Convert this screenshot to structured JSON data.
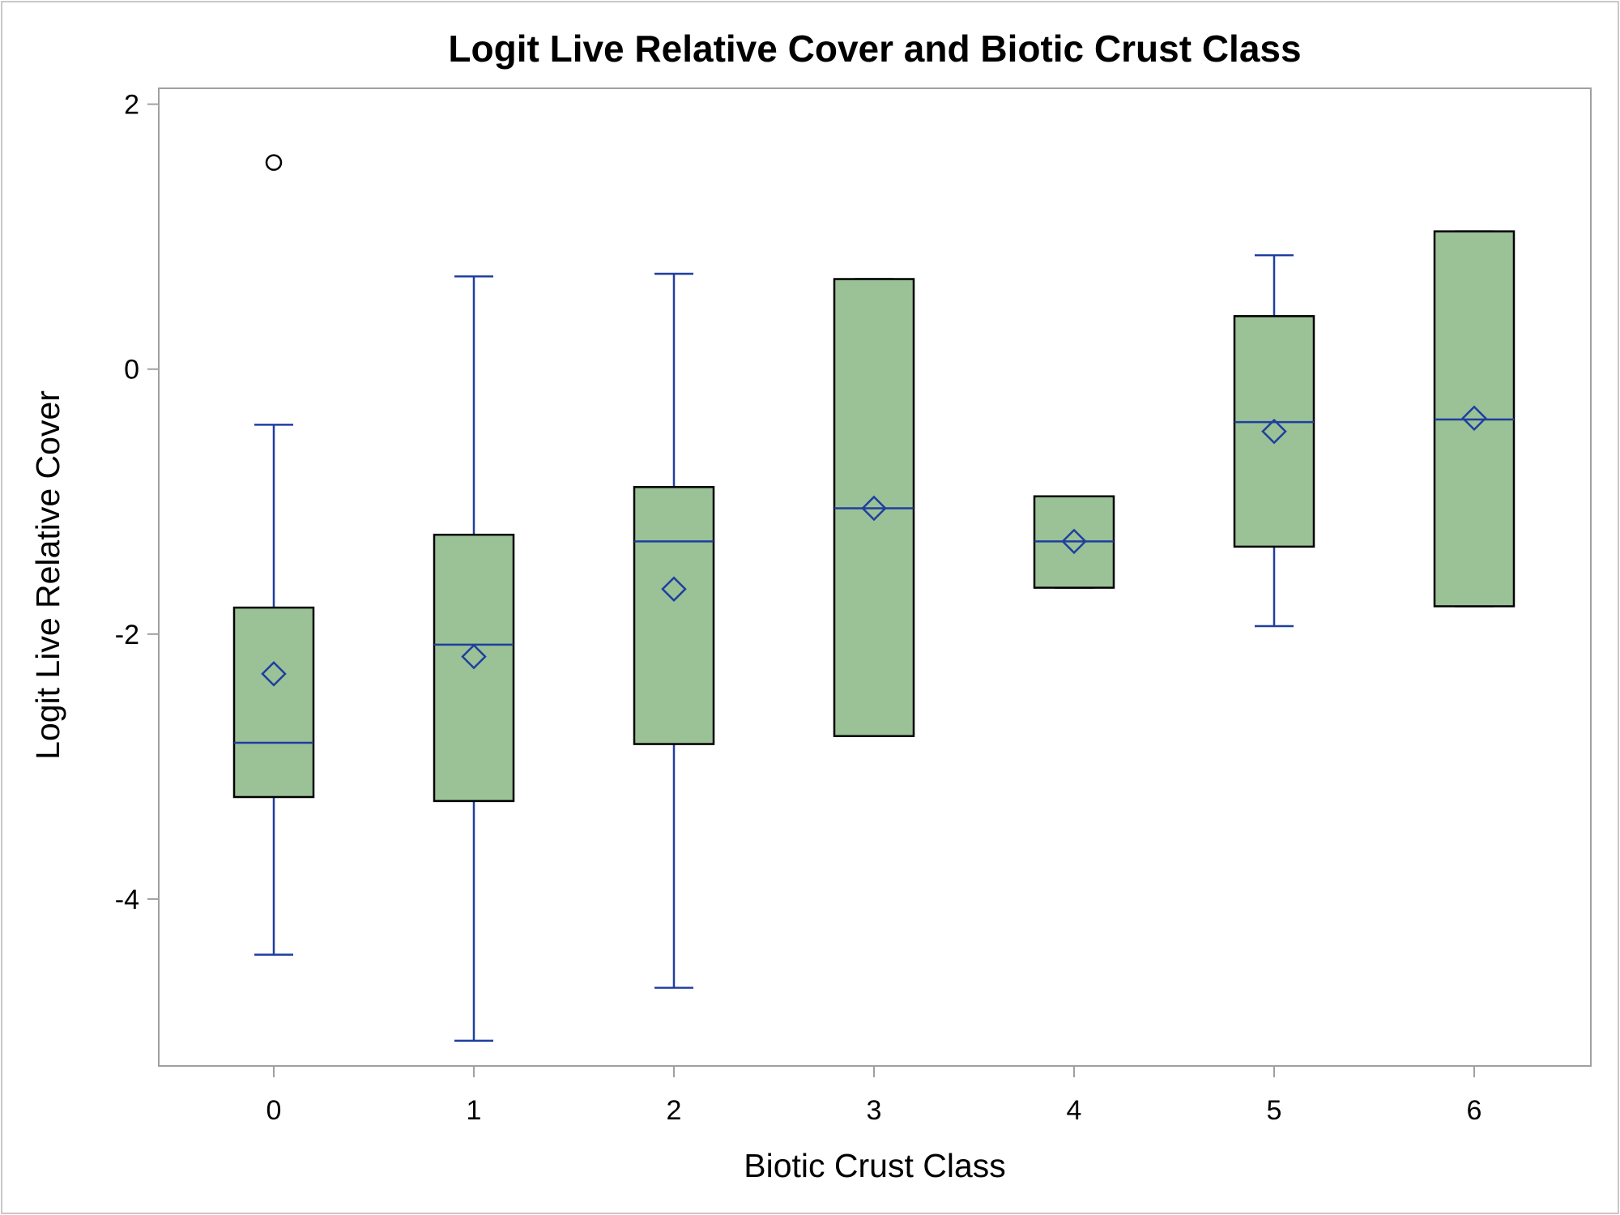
{
  "chart_data": {
    "type": "box",
    "title": "Logit Live Relative Cover and Biotic Crust Class",
    "xlabel": "Biotic Crust Class",
    "ylabel": "Logit Live Relative Cover",
    "categories": [
      "0",
      "1",
      "2",
      "3",
      "4",
      "5",
      "6"
    ],
    "yticks": [
      2,
      0,
      -2,
      -4
    ],
    "ytick_labels": [
      "2",
      "0",
      "-2",
      "-4"
    ],
    "ylim": [
      -5.26,
      2.12
    ],
    "grid": false,
    "legend": "none",
    "colors": {
      "box_fill": "#9bc196",
      "box_edge": "#000000",
      "whisker": "#1f3f9f",
      "mean_marker": "#1f3f9f",
      "outlier": "#000000",
      "axis": "#a0a0a0"
    },
    "boxes": [
      {
        "category": "0",
        "whisker_low": -4.42,
        "q1": -3.23,
        "median": -2.82,
        "q3": -1.8,
        "whisker_high": -0.42,
        "mean": -2.3,
        "outliers": [
          1.56
        ]
      },
      {
        "category": "1",
        "whisker_low": -5.07,
        "q1": -3.26,
        "median": -2.08,
        "q3": -1.25,
        "whisker_high": 0.7,
        "mean": -2.17,
        "outliers": []
      },
      {
        "category": "2",
        "whisker_low": -4.67,
        "q1": -2.83,
        "median": -1.3,
        "q3": -0.89,
        "whisker_high": 0.72,
        "mean": -1.66,
        "outliers": []
      },
      {
        "category": "3",
        "whisker_low": -2.77,
        "q1": -2.77,
        "median": -1.05,
        "q3": 0.68,
        "whisker_high": 0.68,
        "mean": -1.05,
        "outliers": []
      },
      {
        "category": "4",
        "whisker_low": -1.65,
        "q1": -1.65,
        "median": -1.3,
        "q3": -0.96,
        "whisker_high": -0.96,
        "mean": -1.3,
        "outliers": []
      },
      {
        "category": "5",
        "whisker_low": -1.94,
        "q1": -1.34,
        "median": -0.4,
        "q3": 0.4,
        "whisker_high": 0.86,
        "mean": -0.47,
        "outliers": []
      },
      {
        "category": "6",
        "whisker_low": -1.79,
        "q1": -1.79,
        "median": -0.38,
        "q3": 1.04,
        "whisker_high": 1.04,
        "mean": -0.37,
        "outliers": []
      }
    ]
  }
}
